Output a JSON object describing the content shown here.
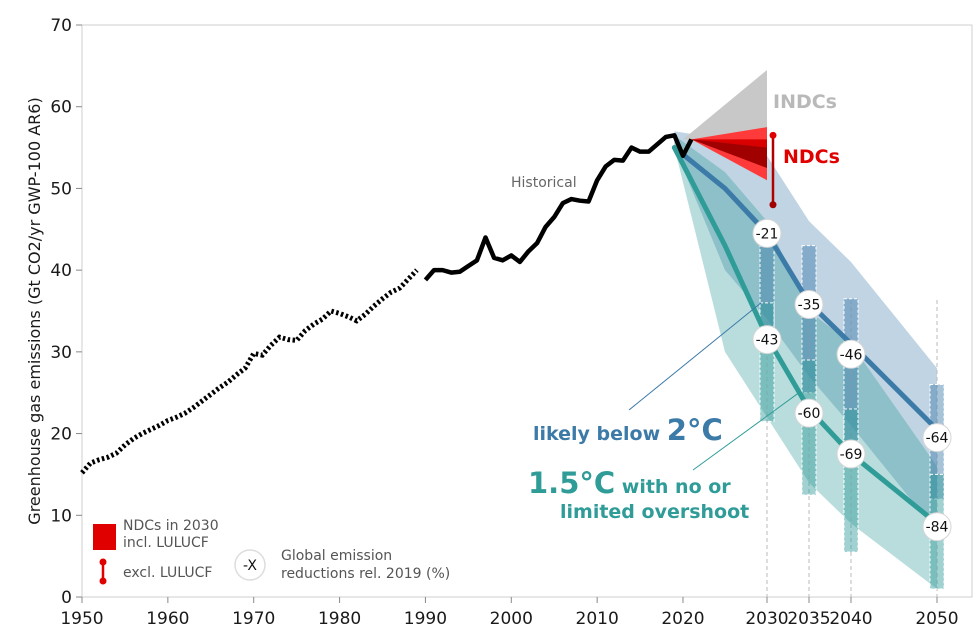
{
  "chart_data": {
    "type": "line",
    "title": "",
    "ylabel": "Greenhouse gas emissions (Gt CO2/yr GWP-100 AR6)",
    "xlabel": "",
    "ylim": [
      0,
      70
    ],
    "xlim": [
      1950,
      2050
    ],
    "x_tick_labels": [
      "1950",
      "1960",
      "1970",
      "1980",
      "1990",
      "2000",
      "2010",
      "2020",
      "2030",
      "2035",
      "2040",
      "2050"
    ],
    "y_ticks": [
      0,
      10,
      20,
      30,
      40,
      50,
      60,
      70
    ],
    "historical_label": "Historical",
    "historical_dotted": {
      "x": [
        1950,
        1951,
        1952,
        1953,
        1954,
        1955,
        1956,
        1957,
        1958,
        1959,
        1960,
        1961,
        1962,
        1963,
        1964,
        1965,
        1966,
        1967,
        1968,
        1969,
        1970,
        1971,
        1972,
        1973,
        1974,
        1975,
        1976,
        1977,
        1978,
        1979,
        1980,
        1981,
        1982,
        1983,
        1984,
        1985,
        1986,
        1987,
        1988,
        1989
      ],
      "y": [
        15.2,
        16.4,
        16.8,
        17.1,
        17.6,
        18.6,
        19.4,
        20.0,
        20.5,
        21.0,
        21.6,
        22.0,
        22.5,
        23.2,
        24.0,
        24.8,
        25.6,
        26.3,
        27.2,
        28.0,
        29.8,
        29.6,
        30.8,
        31.8,
        31.5,
        31.4,
        32.6,
        33.4,
        34.0,
        35.0,
        34.7,
        34.3,
        33.8,
        34.6,
        35.6,
        36.5,
        37.3,
        37.8,
        38.9,
        40.0
      ]
    },
    "historical_solid": {
      "x": [
        1990,
        1991,
        1992,
        1993,
        1994,
        1995,
        1996,
        1997,
        1998,
        1999,
        2000,
        2001,
        2002,
        2003,
        2004,
        2005,
        2006,
        2007,
        2008,
        2009,
        2010,
        2011,
        2012,
        2013,
        2014,
        2015,
        2016,
        2017,
        2018,
        2019,
        2020,
        2021
      ],
      "y": [
        38.8,
        40.0,
        40.0,
        39.7,
        39.8,
        40.5,
        41.2,
        44.0,
        41.5,
        41.2,
        41.8,
        41.0,
        42.3,
        43.3,
        45.3,
        46.5,
        48.2,
        48.7,
        48.5,
        48.4,
        51.0,
        52.7,
        53.5,
        53.4,
        55.0,
        54.5,
        54.5,
        55.4,
        56.3,
        56.5,
        54.0,
        56.0
      ]
    },
    "series": [
      {
        "name": "likely below 2°C",
        "color": "#3c7aa8",
        "x": [
          2019,
          2025,
          2030,
          2035,
          2040,
          2050
        ],
        "y": [
          55,
          50,
          44.5,
          36,
          31,
          20.5
        ],
        "band_low": [
          55,
          40,
          34,
          27,
          21,
          8
        ],
        "band_high": [
          57,
          56,
          54,
          46,
          41,
          28
        ]
      },
      {
        "name": "1.5°C with no or limited overshoot",
        "color": "#2f9c98",
        "x": [
          2019,
          2025,
          2030,
          2035,
          2040,
          2050
        ],
        "y": [
          55,
          43,
          31.8,
          23,
          17.5,
          9
        ],
        "band_low": [
          55,
          30,
          22,
          14,
          9,
          1
        ],
        "band_high": [
          56.5,
          52,
          46,
          35,
          31,
          16
        ]
      }
    ],
    "scenario_labels": {
      "two_c_prefix": "likely below ",
      "two_c_main": "2°C",
      "one_five_main": "1.5°C",
      "one_five_rest": " with no or",
      "one_five_line2": "limited overshoot"
    },
    "reductions": [
      {
        "label": "-21",
        "x": 2030,
        "y": 44.5,
        "series": "2C"
      },
      {
        "label": "-35",
        "x": 2035,
        "y": 35.8,
        "series": "2C"
      },
      {
        "label": "-46",
        "x": 2040,
        "y": 29.7,
        "series": "2C"
      },
      {
        "label": "-64",
        "x": 2050,
        "y": 19.5,
        "series": "2C"
      },
      {
        "label": "-43",
        "x": 2030,
        "y": 31.5,
        "series": "1.5C"
      },
      {
        "label": "-60",
        "x": 2035,
        "y": 22.5,
        "series": "1.5C"
      },
      {
        "label": "-69",
        "x": 2040,
        "y": 17.5,
        "series": "1.5C"
      },
      {
        "label": "-84",
        "x": 2050,
        "y": 8.6,
        "series": "1.5C"
      }
    ],
    "boxes": [
      {
        "x": 2030,
        "low": 31.5,
        "high": 45.5,
        "color": "#3c7aa8"
      },
      {
        "x": 2035,
        "low": 25,
        "high": 43,
        "color": "#3c7aa8"
      },
      {
        "x": 2040,
        "low": 18,
        "high": 36.5,
        "color": "#3c7aa8"
      },
      {
        "x": 2050,
        "low": 12,
        "high": 26,
        "color": "#3c7aa8"
      },
      {
        "x": 2030,
        "low": 21.5,
        "high": 36,
        "color": "#2f9c98"
      },
      {
        "x": 2035,
        "low": 12.5,
        "high": 29,
        "color": "#2f9c98"
      },
      {
        "x": 2040,
        "low": 5.5,
        "high": 23,
        "color": "#2f9c98"
      },
      {
        "x": 2050,
        "low": 1,
        "high": 15,
        "color": "#2f9c98"
      }
    ],
    "indcs": {
      "label": "INDCs",
      "color": "#c8c8c8",
      "x0": 2020,
      "y0": 56,
      "x1": 2030,
      "y_low": 56,
      "y_high": 64.5
    },
    "ndcs": {
      "label": "NDCs",
      "color": "#e00000",
      "x0": 2021,
      "y0": 56,
      "x1": 2030,
      "y_low": 51,
      "y_high": 57.5,
      "whisker_top": 56.5,
      "whisker_bottom": 48
    },
    "legend": {
      "ndc_incl": [
        "NDCs in 2030",
        "incl. LULUCF"
      ],
      "ndc_excl": "excl. LULUCF",
      "circle_symbol": "-X",
      "circle_text": [
        "Global emission",
        "reductions rel. 2019 (%)"
      ]
    }
  }
}
